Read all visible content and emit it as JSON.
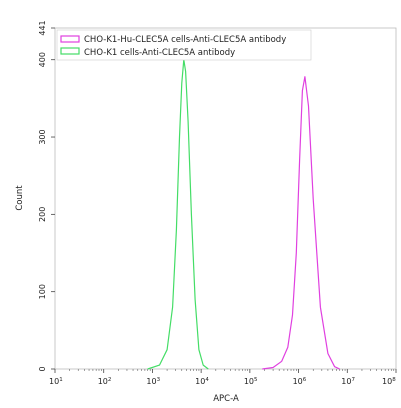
{
  "chart_data": {
    "type": "line",
    "title": "",
    "xlabel": "APC-A",
    "ylabel": "Count",
    "xscale": "log",
    "xlim": [
      10,
      100000000
    ],
    "ylim": [
      0,
      441
    ],
    "x_ticks": [
      {
        "base": "10",
        "exp": "1",
        "value": 10
      },
      {
        "base": "10",
        "exp": "2",
        "value": 100
      },
      {
        "base": "10",
        "exp": "3",
        "value": 1000
      },
      {
        "base": "10",
        "exp": "4",
        "value": 10000
      },
      {
        "base": "10",
        "exp": "5",
        "value": 100000
      },
      {
        "base": "10",
        "exp": "6",
        "value": 1000000
      },
      {
        "base": "10",
        "exp": "7",
        "value": 10000000
      },
      {
        "base": "10",
        "exp": "8",
        "value": 100000000
      }
    ],
    "y_ticks": [
      0,
      100,
      200,
      300,
      400,
      441
    ],
    "legend_position": "top-left",
    "series": [
      {
        "name": "CHO-K1-Hu-CLEC5A cells-Anti-CLEC5A antibody",
        "color": "#e040e0",
        "x": [
          180000,
          300000,
          450000,
          600000,
          750000,
          900000,
          1050000,
          1200000,
          1350000,
          1600000,
          2000000,
          2800000,
          4000000,
          5500000,
          7000000
        ],
        "y": [
          0,
          2,
          10,
          28,
          70,
          150,
          270,
          360,
          378,
          340,
          220,
          80,
          20,
          3,
          0
        ]
      },
      {
        "name": "CHO-K1 cells-Anti-CLEC5A antibody",
        "color": "#44dd66",
        "x": [
          800,
          1400,
          2000,
          2600,
          3100,
          3600,
          4000,
          4400,
          4800,
          5400,
          6300,
          7500,
          9000,
          11000,
          14000
        ],
        "y": [
          0,
          5,
          25,
          80,
          180,
          300,
          370,
          400,
          385,
          320,
          200,
          90,
          25,
          5,
          0
        ]
      }
    ]
  }
}
